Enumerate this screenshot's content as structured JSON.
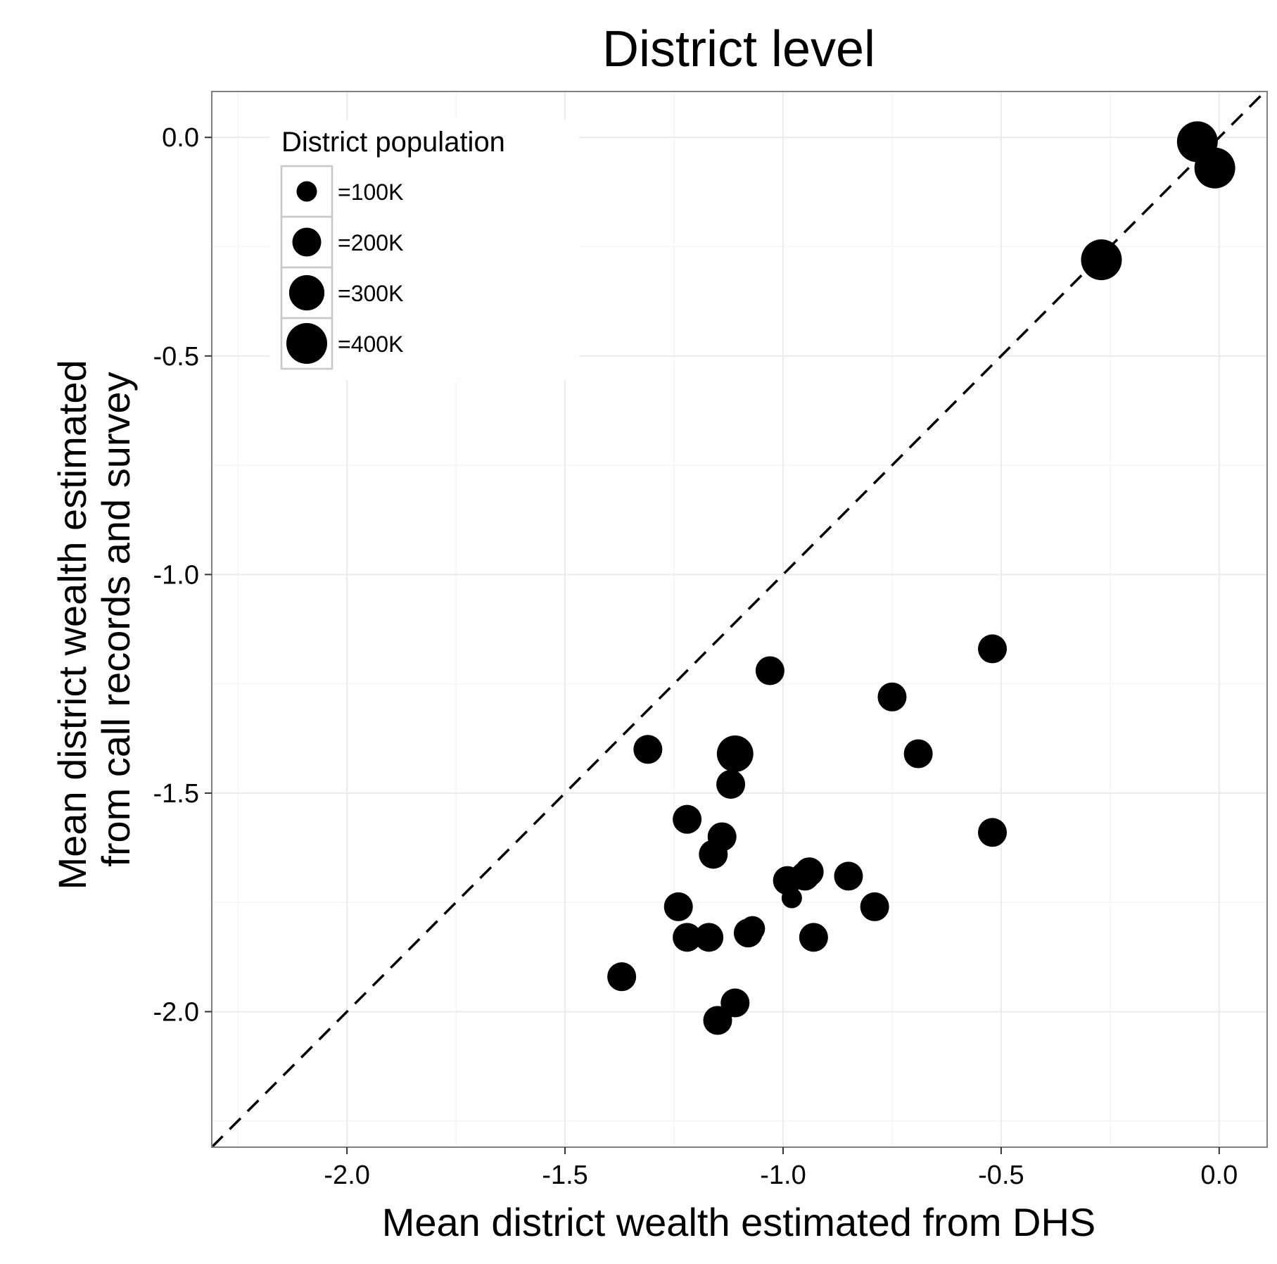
{
  "chart_data": {
    "type": "scatter",
    "title": "District level",
    "xlabel": "Mean district wealth estimated from DHS",
    "ylabel_lines": [
      "Mean district wealth estimated",
      "from call records and survey"
    ],
    "xlim": [
      -2.31,
      0.11
    ],
    "ylim": [
      -2.31,
      0.105
    ],
    "x_ticks": [
      -2.0,
      -1.5,
      -1.0,
      -0.5,
      0.0
    ],
    "x_tick_labels": [
      "-2.0",
      "-1.5",
      "-1.0",
      "-0.5",
      "0.0"
    ],
    "y_ticks": [
      0.0,
      -0.5,
      -1.0,
      -1.5,
      -2.0
    ],
    "y_tick_labels": [
      "0.0",
      "-0.5",
      "-1.0",
      "-1.5",
      "-2.0"
    ],
    "grid": true,
    "reference_line": "y = x (dashed)",
    "legend": {
      "title": "District population",
      "placement": "top-left",
      "entries": [
        {
          "label": "=100K",
          "population_k": 100
        },
        {
          "label": "=200K",
          "population_k": 200
        },
        {
          "label": "=300K",
          "population_k": 300
        },
        {
          "label": "=400K",
          "population_k": 400
        }
      ]
    },
    "points": [
      {
        "x": -0.05,
        "y": -0.01,
        "population_k": 400
      },
      {
        "x": -0.01,
        "y": -0.07,
        "population_k": 400
      },
      {
        "x": -0.27,
        "y": -0.28,
        "population_k": 400
      },
      {
        "x": -0.52,
        "y": -1.17,
        "population_k": 200
      },
      {
        "x": -1.03,
        "y": -1.22,
        "population_k": 200
      },
      {
        "x": -0.75,
        "y": -1.28,
        "population_k": 200
      },
      {
        "x": -0.69,
        "y": -1.41,
        "population_k": 200
      },
      {
        "x": -1.31,
        "y": -1.4,
        "population_k": 200
      },
      {
        "x": -1.11,
        "y": -1.41,
        "population_k": 320
      },
      {
        "x": -1.12,
        "y": -1.48,
        "population_k": 200
      },
      {
        "x": -1.22,
        "y": -1.56,
        "population_k": 200
      },
      {
        "x": -1.14,
        "y": -1.6,
        "population_k": 200
      },
      {
        "x": -0.52,
        "y": -1.59,
        "population_k": 200
      },
      {
        "x": -1.16,
        "y": -1.64,
        "population_k": 200
      },
      {
        "x": -0.94,
        "y": -1.68,
        "population_k": 200
      },
      {
        "x": -0.95,
        "y": -1.69,
        "population_k": 200
      },
      {
        "x": -0.85,
        "y": -1.69,
        "population_k": 200
      },
      {
        "x": -0.99,
        "y": -1.7,
        "population_k": 200
      },
      {
        "x": -0.98,
        "y": -1.74,
        "population_k": 100
      },
      {
        "x": -0.79,
        "y": -1.76,
        "population_k": 200
      },
      {
        "x": -1.24,
        "y": -1.76,
        "population_k": 200
      },
      {
        "x": -1.07,
        "y": -1.81,
        "population_k": 150
      },
      {
        "x": -1.08,
        "y": -1.82,
        "population_k": 200
      },
      {
        "x": -1.22,
        "y": -1.83,
        "population_k": 200
      },
      {
        "x": -1.17,
        "y": -1.83,
        "population_k": 200
      },
      {
        "x": -0.93,
        "y": -1.83,
        "population_k": 200
      },
      {
        "x": -1.37,
        "y": -1.92,
        "population_k": 200
      },
      {
        "x": -1.11,
        "y": -1.98,
        "population_k": 200
      },
      {
        "x": -1.15,
        "y": -2.02,
        "population_k": 200
      }
    ],
    "colors": {
      "points": "#000000",
      "grid": "#ebebeb",
      "panel_border": "#7f7f7f",
      "legend_key_border": "#c8c8c8"
    }
  }
}
